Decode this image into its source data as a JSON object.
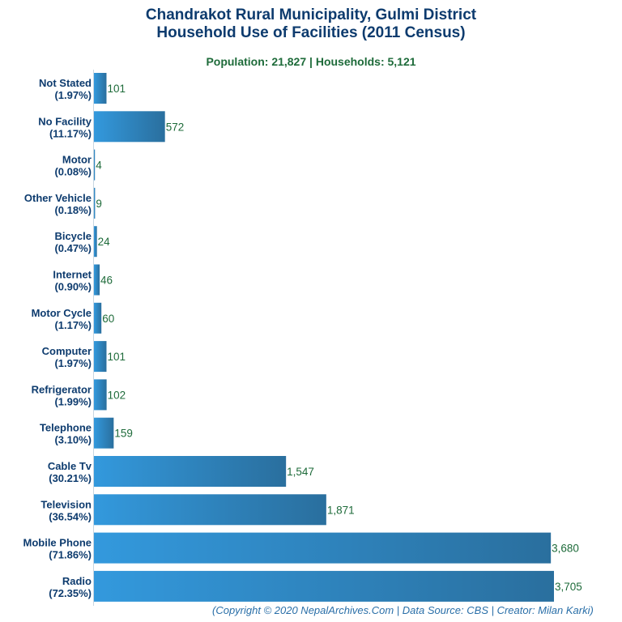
{
  "title_line1": "Chandrakot Rural Municipality, Gulmi District",
  "title_line2": "Household Use of Facilities (2011 Census)",
  "subtitle": "Population: 21,827 | Households: 5,121",
  "footer": "(Copyright © 2020 NepalArchives.Com | Data Source: CBS | Creator: Milan Karki)",
  "chart_data": {
    "type": "bar",
    "orientation": "horizontal",
    "title": "Chandrakot Rural Municipality, Gulmi District Household Use of Facilities (2011 Census)",
    "subtitle": "Population: 21,827 | Households: 5,121",
    "categories": [
      "Not Stated",
      "No Facility",
      "Motor",
      "Other Vehicle",
      "Bicycle",
      "Internet",
      "Motor Cycle",
      "Computer",
      "Refrigerator",
      "Telephone",
      "Cable Tv",
      "Television",
      "Mobile Phone",
      "Radio"
    ],
    "percent_labels": [
      "(1.97%)",
      "(11.17%)",
      "(0.08%)",
      "(0.18%)",
      "(0.47%)",
      "(0.90%)",
      "(1.17%)",
      "(1.97%)",
      "(1.99%)",
      "(3.10%)",
      "(30.21%)",
      "(36.54%)",
      "(71.86%)",
      "(72.35%)"
    ],
    "values": [
      101,
      572,
      4,
      9,
      24,
      46,
      60,
      101,
      102,
      159,
      1547,
      1871,
      3680,
      3705
    ],
    "value_labels": [
      "101",
      "572",
      "4",
      "9",
      "24",
      "46",
      "60",
      "101",
      "102",
      "159",
      "1,547",
      "1,871",
      "3,680",
      "3,705"
    ],
    "xlim": [
      0,
      3705
    ],
    "bar_color_start": "#3399dd",
    "bar_color_end": "#2a6f9e",
    "label_color": "#0d3b6e",
    "value_color": "#1e6b3a"
  }
}
